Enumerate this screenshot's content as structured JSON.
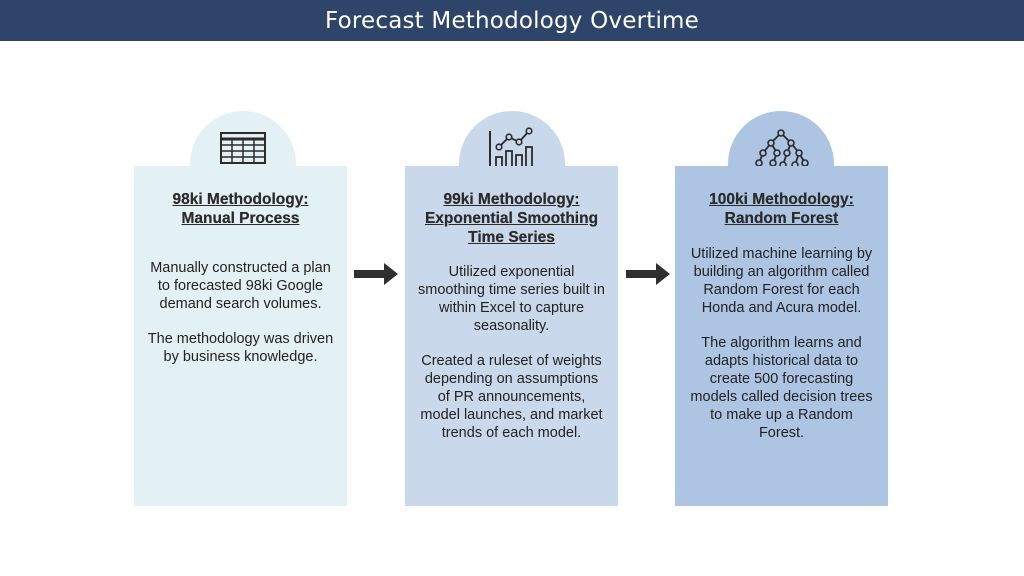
{
  "title": "Forecast Methodology Overtime",
  "cards": [
    {
      "heading_line1": "98ki Methodology:",
      "heading_line2": "Manual Process",
      "heading_line3": "",
      "para1": "Manually constructed a plan to forecasted 98ki Google demand search volumes.",
      "para2": "The methodology was driven by business knowledge.",
      "icon": "table-icon",
      "color": "#e3f1f5"
    },
    {
      "heading_line1": "99ki Methodology:",
      "heading_line2": "Exponential Smoothing",
      "heading_line3": "Time Series",
      "para1": "Utilized exponential smoothing time series built in within Excel to capture seasonality.",
      "para2": "Created a ruleset of weights depending on assumptions of PR announcements, model launches, and market trends of each model.",
      "icon": "bar-line-chart-icon",
      "color": "#c9d8ea"
    },
    {
      "heading_line1": "100ki Methodology:",
      "heading_line2": "Random Forest",
      "heading_line3": "",
      "para1": "Utilized machine learning by building an algorithm called Random Forest for each Honda and Acura model.",
      "para2": "The algorithm learns and adapts historical data to create 500 forecasting models called decision trees to make up a Random Forest.",
      "icon": "decision-tree-icon",
      "color": "#adc5e3"
    }
  ],
  "colors": {
    "title_bar": "#2e4468",
    "arrow": "#2f2f2f"
  }
}
